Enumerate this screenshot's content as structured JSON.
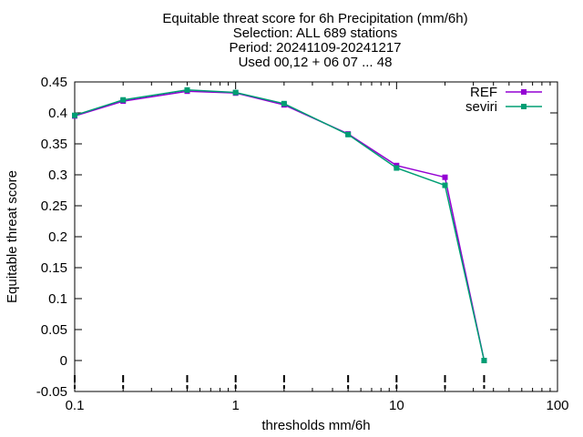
{
  "chart_data": {
    "type": "line",
    "title_lines": [
      "Equitable threat score  for 6h Precipitation (mm/6h)",
      "Selection: ALL    689 stations",
      "Period: 20241109-20241217",
      "Used 00,12 + 06 07 ... 48"
    ],
    "xlabel": "thresholds mm/6h",
    "ylabel": "Equitable threat score",
    "x_scale": "log",
    "xlim": [
      0.1,
      100
    ],
    "ylim": [
      -0.05,
      0.45
    ],
    "x_ticks": [
      {
        "value": 0.1,
        "label": "0.1"
      },
      {
        "value": 1,
        "label": "1"
      },
      {
        "value": 10,
        "label": "10"
      },
      {
        "value": 100,
        "label": "100"
      }
    ],
    "y_ticks": [
      {
        "value": 0.45,
        "label": "0.45"
      },
      {
        "value": 0.4,
        "label": "0.4"
      },
      {
        "value": 0.35,
        "label": "0.35"
      },
      {
        "value": 0.3,
        "label": "0.3"
      },
      {
        "value": 0.25,
        "label": "0.25"
      },
      {
        "value": 0.2,
        "label": "0.2"
      },
      {
        "value": 0.15,
        "label": "0.15"
      },
      {
        "value": 0.1,
        "label": "0.1"
      },
      {
        "value": 0.05,
        "label": "0.05"
      },
      {
        "value": 0,
        "label": "0"
      },
      {
        "value": -0.05,
        "label": "-0.05"
      }
    ],
    "grid": false,
    "legend_position": "top-right",
    "thresholds": [
      0.1,
      0.2,
      0.5,
      1,
      2,
      5,
      10,
      20,
      35
    ],
    "series": [
      {
        "name": "REF",
        "color": "#9400d3",
        "x": [
          0.1,
          0.2,
          0.5,
          1,
          2,
          5,
          10,
          20,
          35
        ],
        "y": [
          0.395,
          0.419,
          0.435,
          0.432,
          0.413,
          0.366,
          0.315,
          0.296,
          0.0
        ]
      },
      {
        "name": "seviri",
        "color": "#009e73",
        "x": [
          0.1,
          0.2,
          0.5,
          1,
          2,
          5,
          10,
          20,
          35
        ],
        "y": [
          0.396,
          0.421,
          0.437,
          0.433,
          0.415,
          0.365,
          0.311,
          0.283,
          0.0
        ]
      }
    ]
  }
}
